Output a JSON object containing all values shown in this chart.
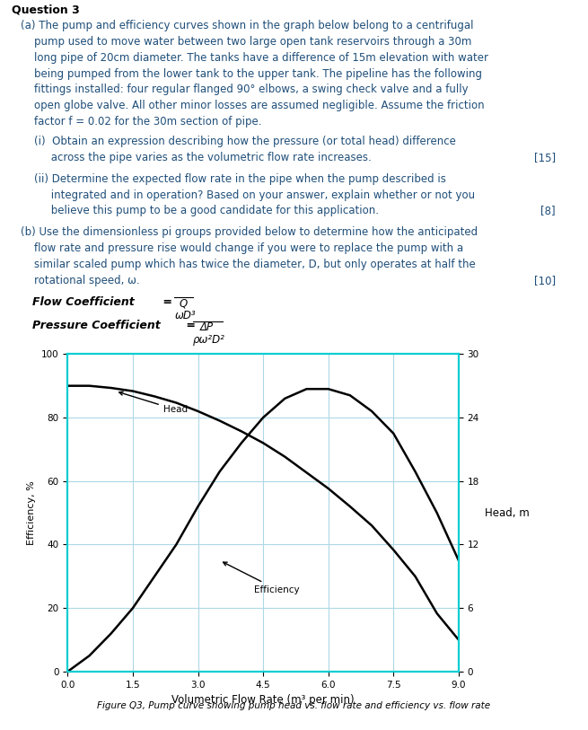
{
  "title_text": "Question 3",
  "background_color": "#ffffff",
  "text_color": "#000000",
  "blue_text_color": "#1f4e79",
  "para_a_text": "(a) The pump and efficiency curves shown in the graph below belong to a centrifugal\n    pump used to move water between two large open tank reservoirs through a 30m\n    long pipe of 20cm diameter. The tanks have a difference of 15m elevation with water\n    being pumped from the lower tank to the upper tank. The pipeline has the following\n    fittings installed: four regular flanged 90° elbows, a swing check valve and a fully\n    open globe valve. All other minor losses are assumed negligible. Assume the friction\n    factor f = 0.02 for the 30m section of pipe.",
  "sub_i_text": "(i)  Obtain an expression describing how the pressure (or total head) difference\n     across the pipe varies as the volumetric flow rate increases.",
  "sub_i_mark": "[15]",
  "sub_ii_text": "(ii) Determine the expected flow rate in the pipe when the pump described is\n     integrated and in operation? Based on your answer, explain whether or not you\n     believe this pump to be a good candidate for this application.",
  "sub_ii_mark": "[8]",
  "para_b_text": "(b) Use the dimensionless pi groups provided below to determine how the anticipated\n    flow rate and pressure rise would change if you were to replace the pump with a\n    similar scaled pump which has twice the diameter, D, but only operates at half the\n    rotational speed, ω.",
  "para_b_mark": "[10]",
  "flow_coeff_label": "Flow Coefficient = ",
  "flow_coeff_num": "Q",
  "flow_coeff_den_actual": "ωD³",
  "pressure_coeff_label": "Pressure Coefficient = ",
  "pressure_coeff_num": "ΔP",
  "pressure_coeff_den": "ρω²D²",
  "figure_caption": "Figure Q3, Pump curve showing pump head vs. flow rate and efficiency vs. flow rate",
  "xlabel": "Volumetric Flow Rate (m³ per min)",
  "ylabel_left": "Efficiency, %",
  "ylabel_right": "Head, m",
  "right_label": "Head, m",
  "x_ticks": [
    0,
    1.5,
    3,
    4.5,
    6,
    7.5,
    9
  ],
  "left_yticks": [
    0,
    20,
    40,
    60,
    80,
    100
  ],
  "right_yticks": [
    0,
    6,
    12,
    18,
    24,
    30
  ],
  "xlim": [
    0,
    9
  ],
  "left_ylim": [
    0,
    100
  ],
  "right_ylim": [
    0,
    30
  ],
  "head_x": [
    0,
    0.5,
    1.0,
    1.5,
    2.0,
    2.5,
    3.0,
    3.5,
    4.0,
    4.5,
    5.0,
    5.5,
    6.0,
    6.5,
    7.0,
    7.5,
    8.0,
    8.5,
    9.0
  ],
  "head_y": [
    27.0,
    27.0,
    26.8,
    26.5,
    26.0,
    25.4,
    24.6,
    23.7,
    22.7,
    21.6,
    20.3,
    18.8,
    17.3,
    15.6,
    13.8,
    11.5,
    9.0,
    5.5,
    3.0
  ],
  "eff_x": [
    0,
    0.5,
    1.0,
    1.5,
    2.0,
    2.5,
    3.0,
    3.5,
    4.0,
    4.5,
    5.0,
    5.5,
    6.0,
    6.5,
    7.0,
    7.5,
    8.0,
    8.5,
    9.0
  ],
  "eff_y": [
    0,
    5,
    12,
    20,
    30,
    40,
    52,
    63,
    72,
    80,
    86,
    89,
    89,
    87,
    82,
    75,
    63,
    50,
    35
  ],
  "curve_color": "#000000",
  "grid_color": "#add8e6",
  "spine_color": "#00ced1",
  "head_label": "Head",
  "eff_label": "Efficiency"
}
